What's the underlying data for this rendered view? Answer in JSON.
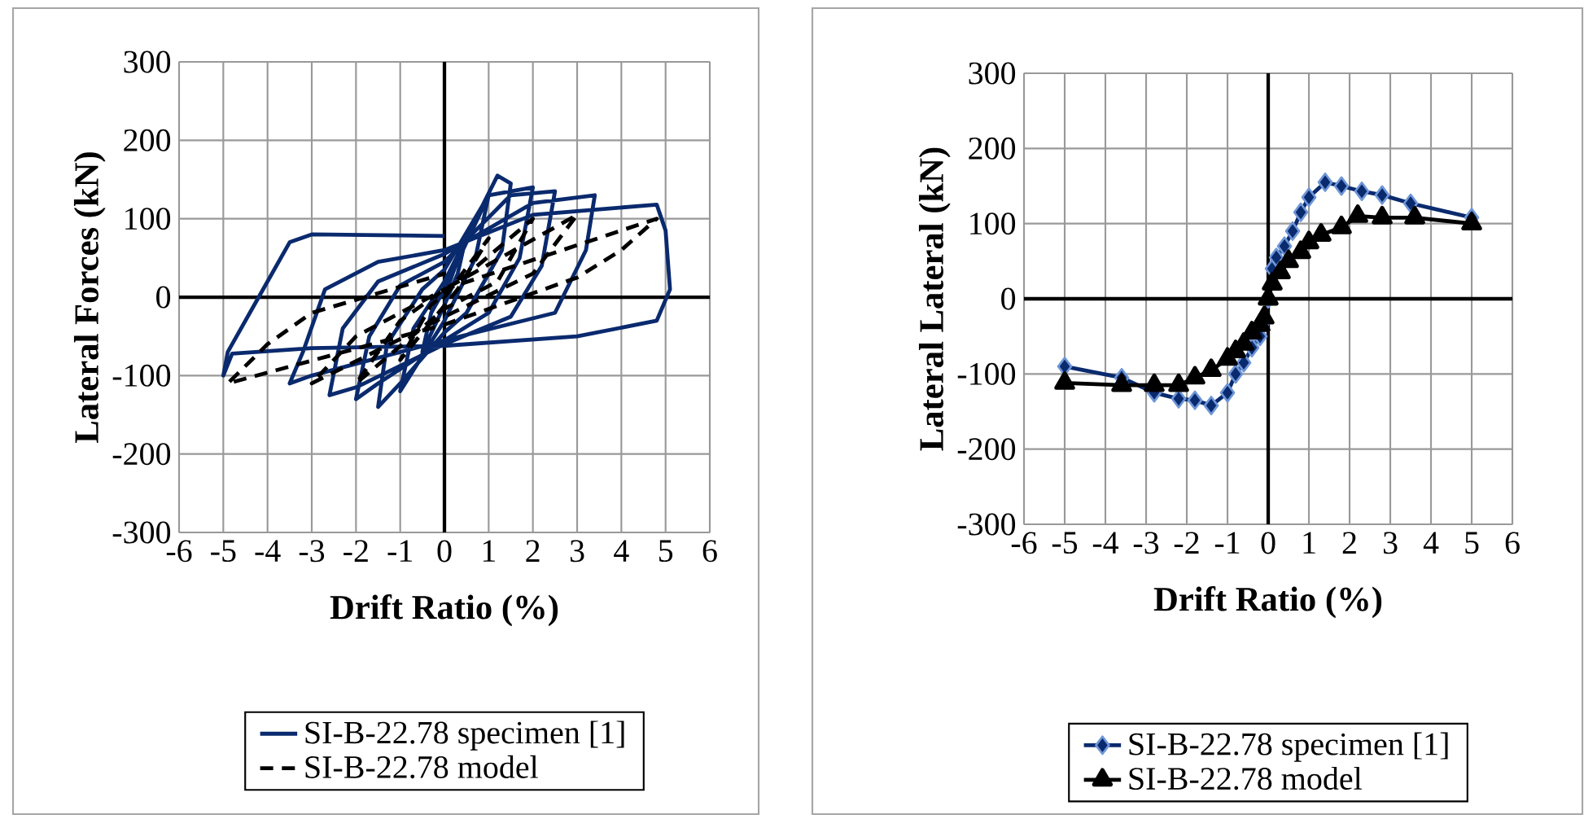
{
  "chart_data": [
    {
      "type": "line",
      "xlabel": "Drift Ratio (%)",
      "ylabel": "Lateral Forces (kN)",
      "xlim": [
        -6,
        6
      ],
      "ylim": [
        -300,
        300
      ],
      "xticks": [
        -6,
        -5,
        -4,
        -3,
        -2,
        -1,
        0,
        1,
        2,
        3,
        4,
        5,
        6
      ],
      "yticks": [
        -300,
        -200,
        -100,
        0,
        100,
        200,
        300
      ],
      "grid": true,
      "legend": "bottom",
      "series": [
        {
          "name": "SI-B-22.78 specimen [1]",
          "color": "#0a2a6e",
          "line_style": "solid",
          "marker": "none",
          "x": [
            0,
            0.5,
            0.3,
            0,
            -0.5,
            -0.3,
            0,
            1,
            0.7,
            0,
            -1,
            -0.7,
            0,
            1.2,
            1.5,
            1.3,
            0.5,
            0,
            -1,
            -1.5,
            -1.3,
            -0.5,
            0,
            1,
            2,
            1.7,
            1,
            0,
            -1.5,
            -2,
            -1.7,
            -1,
            0,
            1.5,
            2.5,
            2.2,
            1.5,
            0,
            -2,
            -2.6,
            -2.3,
            -1.5,
            0,
            2,
            3.4,
            3.2,
            2.5,
            0,
            -3,
            -3.5,
            -3.2,
            -2.7,
            -1.5,
            0,
            2,
            4.8,
            5,
            5.1,
            4.8,
            3,
            0,
            -3,
            -4.8,
            -5,
            -4.9,
            -4.2,
            -3.5,
            -3,
            0
          ],
          "values": [
            0,
            80,
            30,
            -10,
            -70,
            -20,
            10,
            130,
            50,
            -30,
            -120,
            -40,
            20,
            155,
            145,
            60,
            -20,
            -45,
            -110,
            -140,
            -60,
            10,
            35,
            130,
            140,
            50,
            -20,
            -55,
            -110,
            -130,
            -50,
            15,
            45,
            130,
            135,
            40,
            -25,
            -60,
            -115,
            -125,
            -40,
            20,
            55,
            120,
            130,
            60,
            -20,
            -55,
            -100,
            -110,
            -70,
            10,
            45,
            60,
            105,
            118,
            85,
            10,
            -30,
            -50,
            -62,
            -65,
            -72,
            -100,
            -70,
            0,
            70,
            80,
            78
          ]
        },
        {
          "name": "SI-B-22.78 model",
          "color": "#000000",
          "line_style": "dashed",
          "marker": "none",
          "x": [
            0,
            1,
            0.3,
            -1,
            -0.3,
            2,
            1.2,
            0,
            -2,
            -1,
            0,
            3,
            2,
            0,
            -3,
            -2,
            0,
            4.8,
            4,
            3,
            0,
            -4.9,
            -4,
            -3,
            0
          ],
          "values": [
            0,
            75,
            10,
            -80,
            -10,
            100,
            20,
            -15,
            -110,
            -30,
            10,
            105,
            30,
            -25,
            -110,
            -50,
            10,
            100,
            60,
            25,
            -35,
            -110,
            -60,
            -20,
            30
          ]
        }
      ]
    },
    {
      "type": "line",
      "xlabel": "Drift Ratio (%)",
      "ylabel": "Lateral Lateral (kN)",
      "xlim": [
        -6,
        6
      ],
      "ylim": [
        -300,
        300
      ],
      "xticks": [
        -6,
        -5,
        -4,
        -3,
        -2,
        -1,
        0,
        1,
        2,
        3,
        4,
        5,
        6
      ],
      "yticks": [
        -300,
        -200,
        -100,
        0,
        100,
        200,
        300
      ],
      "grid": true,
      "legend": "bottom",
      "series": [
        {
          "name": "SI-B-22.78 specimen [1]",
          "color": "#0a2a6e",
          "line_style": "solid",
          "marker": "diamond",
          "x": [
            -5,
            -3.6,
            -2.8,
            -2.2,
            -1.8,
            -1.4,
            -1.0,
            -0.8,
            -0.6,
            -0.4,
            -0.2,
            -0.1,
            0,
            0.1,
            0.2,
            0.4,
            0.6,
            0.8,
            1.0,
            1.4,
            1.8,
            2.3,
            2.8,
            3.5,
            5
          ],
          "values": [
            -90,
            -105,
            -125,
            -133,
            -135,
            -142,
            -125,
            -100,
            -85,
            -65,
            -50,
            -30,
            0,
            40,
            55,
            70,
            90,
            115,
            135,
            155,
            150,
            143,
            138,
            127,
            108
          ]
        },
        {
          "name": "SI-B-22.78 model",
          "color": "#000000",
          "line_style": "solid",
          "marker": "triangle",
          "x": [
            -5,
            -3.6,
            -2.8,
            -2.2,
            -1.8,
            -1.4,
            -1.0,
            -0.8,
            -0.6,
            -0.4,
            -0.2,
            -0.1,
            0,
            0.1,
            0.3,
            0.5,
            0.8,
            1.0,
            1.3,
            1.8,
            2.2,
            2.8,
            3.6,
            5
          ],
          "values": [
            -112,
            -115,
            -115,
            -115,
            -105,
            -95,
            -80,
            -70,
            -60,
            -45,
            -35,
            -25,
            0,
            20,
            35,
            50,
            62,
            75,
            85,
            95,
            110,
            108,
            108,
            100
          ]
        }
      ]
    }
  ]
}
